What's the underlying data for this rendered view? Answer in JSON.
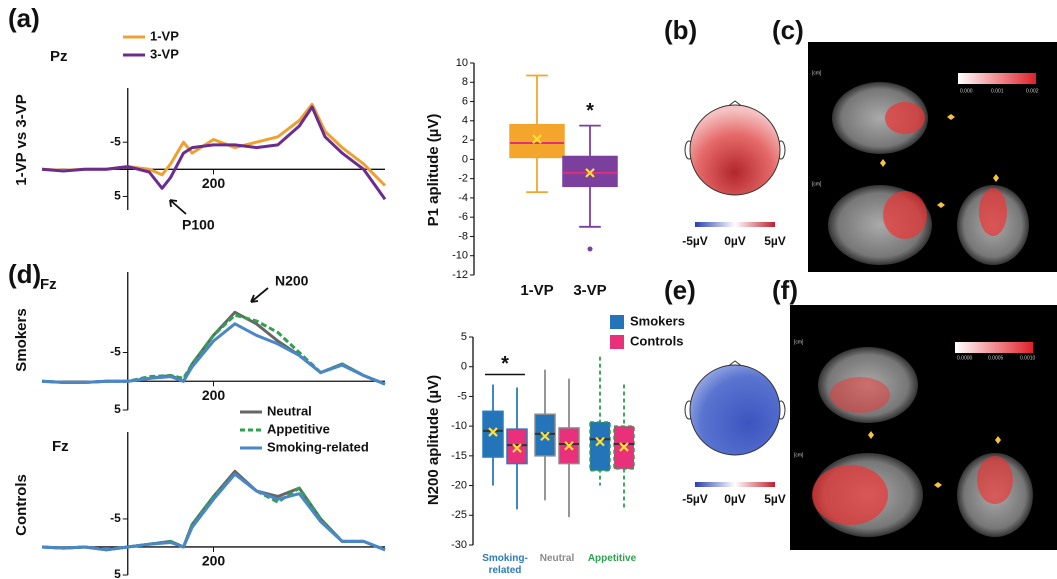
{
  "figure": {
    "panels": [
      "(a)",
      "(b)",
      "(c)",
      "(d)",
      "(e)",
      "(f)"
    ],
    "topomap_scale": [
      "-5µV",
      "0µV",
      "5µV"
    ],
    "source_scale_c": [
      "0.000",
      "0.001",
      "0.002"
    ],
    "source_scale_f": [
      "0.0000",
      "0.0005",
      "0.0010"
    ],
    "axis_unit": "[cm]"
  },
  "chart_data": [
    {
      "type": "line",
      "channel": "Pz",
      "ylabel": "1-VP vs 3-VP",
      "annotation": "P100",
      "legend": true,
      "x": [
        -200,
        -150,
        -100,
        -50,
        0,
        50,
        80,
        100,
        130,
        150,
        200,
        250,
        300,
        350,
        400,
        430,
        460,
        500,
        550,
        600
      ],
      "series": [
        {
          "name": "1-VP",
          "color": "#f0a030",
          "values": [
            0,
            0.2,
            0,
            0,
            -0.5,
            0,
            1,
            -1,
            -5,
            -3,
            -5.5,
            -4,
            -5,
            -6,
            -9,
            -12,
            -7,
            -4,
            -1,
            3
          ]
        },
        {
          "name": "3-VP",
          "color": "#6a2c91",
          "values": [
            0,
            0.3,
            0,
            0,
            -0.5,
            0.5,
            3.5,
            1.5,
            -3,
            -4,
            -4.5,
            -4.5,
            -4,
            -4.5,
            -8,
            -11.5,
            -6,
            -3,
            0,
            5.5
          ]
        }
      ],
      "xlim": [
        -200,
        600
      ],
      "xticks": [
        200
      ],
      "ylim": [
        -15,
        7.5
      ],
      "yticks": [
        -5,
        5
      ],
      "y_inverted": true
    },
    {
      "type": "box",
      "ylabel": "P1 aplitude (µV)",
      "categories": [
        "1-VP",
        "3-VP"
      ],
      "colors": [
        "#f4a52c",
        "#7b3f9e"
      ],
      "median_color": "#e0307a",
      "boxes": [
        {
          "low": -3.4,
          "q1": 0.2,
          "median": 1.7,
          "q3": 3.6,
          "high": 8.7,
          "mean": 2.1,
          "outliers": []
        },
        {
          "low": -7,
          "q1": -2.8,
          "median": -1.4,
          "q3": 0.3,
          "high": 3.5,
          "mean": -1.4,
          "outliers": [
            -9.3
          ]
        }
      ],
      "annotations": [
        {
          "text": "*",
          "category": 1
        }
      ],
      "ylim": [
        -12,
        10
      ],
      "yticks": [
        -12,
        -10,
        -8,
        -6,
        -4,
        -2,
        0,
        2,
        4,
        6,
        8,
        10
      ]
    },
    {
      "type": "line",
      "channel": "Fz",
      "ylabel": "Smokers",
      "annotation": "N200",
      "legend": false,
      "x": [
        -200,
        -150,
        -100,
        -50,
        0,
        50,
        100,
        130,
        150,
        200,
        250,
        300,
        350,
        400,
        450,
        500,
        550,
        600
      ],
      "series": [
        {
          "name": "Neutral",
          "color": "#666666",
          "dash": false,
          "values": [
            0,
            0.2,
            0.2,
            0,
            0,
            -0.5,
            -1,
            0,
            -3,
            -8,
            -12,
            -10,
            -7,
            -4.5,
            -1.5,
            -3,
            -1,
            0.5
          ]
        },
        {
          "name": "Appetitive",
          "color": "#2ea04f",
          "dash": true,
          "values": [
            0,
            0.2,
            0.2,
            0,
            0,
            -0.8,
            -1,
            -0.5,
            -3,
            -8,
            -11.5,
            -10.5,
            -8.5,
            -5,
            -1.5,
            -3,
            -1,
            0.5
          ]
        },
        {
          "name": "Smoking-related",
          "color": "#4a86c8",
          "dash": false,
          "values": [
            0,
            0.2,
            0.2,
            0,
            0,
            -0.5,
            -0.8,
            0,
            -2.5,
            -7,
            -10,
            -8,
            -6.5,
            -4.5,
            -1.5,
            -2.8,
            -1,
            0.5
          ]
        }
      ],
      "xlim": [
        -200,
        600
      ],
      "xticks": [
        200
      ],
      "ylim": [
        -19,
        5
      ],
      "yticks": [
        -5,
        5
      ],
      "y_inverted": true
    },
    {
      "type": "line",
      "channel": "Fz",
      "ylabel": "Controls",
      "legend": true,
      "x": [
        -200,
        -150,
        -100,
        -50,
        0,
        50,
        100,
        130,
        150,
        200,
        250,
        300,
        350,
        400,
        450,
        500,
        550,
        600
      ],
      "series": [
        {
          "name": "Neutral",
          "color": "#666666",
          "dash": false,
          "values": [
            0,
            0.2,
            0,
            0.5,
            0,
            -0.5,
            -1,
            0,
            -4,
            -9,
            -13.5,
            -10,
            -9,
            -10.5,
            -5,
            -1,
            -1,
            0.5
          ]
        },
        {
          "name": "Appetitive",
          "color": "#2ea04f",
          "dash": true,
          "values": [
            0,
            0.2,
            0,
            0.5,
            0,
            -0.5,
            -1,
            0,
            -4,
            -9,
            -13,
            -10,
            -8,
            -10.5,
            -5,
            -1,
            -1,
            0.5
          ]
        },
        {
          "name": "Smoking-related",
          "color": "#4a86c8",
          "dash": false,
          "values": [
            0,
            0.2,
            0,
            0.5,
            0,
            -0.5,
            -0.8,
            0,
            -3.5,
            -8.5,
            -13,
            -10,
            -8.5,
            -9.5,
            -4.5,
            -1,
            -1,
            0.5
          ]
        }
      ],
      "xlim": [
        -200,
        600
      ],
      "xticks": [
        200
      ],
      "ylim": [
        -20.5,
        5
      ],
      "yticks": [
        -5,
        5
      ],
      "y_inverted": true
    },
    {
      "type": "box",
      "ylabel": "N200 aplitude (µV)",
      "categories": [
        "Smoking-related",
        "Neutral",
        "Appetitive"
      ],
      "category_colors": [
        "#2b7bba",
        "#8a8a8a",
        "#2ea04f"
      ],
      "category_dashed": [
        false,
        false,
        true
      ],
      "median_color": "#333333",
      "legend": true,
      "series": [
        {
          "name": "Smokers",
          "color": "#2374b8",
          "boxes": [
            {
              "low": -20,
              "q1": -15.2,
              "median": -10.8,
              "q3": -7.5,
              "high": -3,
              "mean": -11,
              "outliers": []
            },
            {
              "low": -22.5,
              "q1": -15,
              "median": -11.3,
              "q3": -8,
              "high": -0.5,
              "mean": -11.7,
              "outliers": []
            },
            {
              "low": -20,
              "q1": -17.5,
              "median": -12.2,
              "q3": -9.3,
              "high": 1.7,
              "mean": -12.6,
              "outliers": []
            }
          ]
        },
        {
          "name": "Controls",
          "color": "#e8317a",
          "boxes": [
            {
              "low": -24,
              "q1": -16.3,
              "median": -13.2,
              "q3": -10.5,
              "high": -3.5,
              "mean": -13.7,
              "outliers": []
            },
            {
              "low": -25.3,
              "q1": -16.3,
              "median": -13,
              "q3": -10.3,
              "high": -2,
              "mean": -13.3,
              "outliers": []
            },
            {
              "low": -23.8,
              "q1": -17.2,
              "median": -13,
              "q3": -10,
              "high": -3,
              "mean": -13.5,
              "outliers": []
            }
          ]
        }
      ],
      "annotations": [
        {
          "text": "*",
          "category": 0
        }
      ],
      "ylim": [
        -30,
        5
      ],
      "yticks": [
        -30,
        -25,
        -20,
        -15,
        -10,
        -5,
        0,
        5
      ]
    }
  ]
}
